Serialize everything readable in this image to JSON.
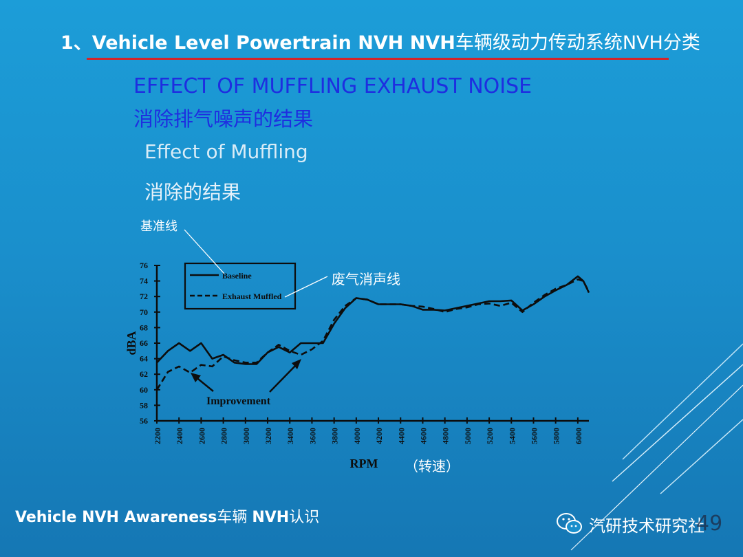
{
  "header": {
    "title_en": "1、Vehicle Level Powertrain NVH  NVH",
    "title_cn": "车辆级动力传动系统NVH分类"
  },
  "subtitle": {
    "line1": "EFFECT OF MUFFLING EXHAUST NOISE",
    "line2": "消除排气噪声的结果",
    "line3": "Effect of Muffling",
    "line4": "消除的结果"
  },
  "annotations": {
    "baseline_cn": "基准线",
    "muffled_cn": "废气消声线",
    "rpm_cn": "（转速）",
    "improvement": "Improvement"
  },
  "chart_data": {
    "type": "line",
    "xlabel": "RPM",
    "ylabel": "dBA",
    "xlim": [
      2200,
      6100
    ],
    "ylim": [
      56,
      76
    ],
    "x_ticks": [
      2200,
      2400,
      2600,
      2800,
      3000,
      3200,
      3400,
      3600,
      3800,
      4000,
      4200,
      4400,
      4600,
      4800,
      5000,
      5200,
      5400,
      5600,
      5800,
      6000
    ],
    "y_ticks": [
      56,
      58,
      60,
      62,
      64,
      66,
      68,
      70,
      72,
      74,
      76
    ],
    "legend": {
      "position": "top-left",
      "boxed": true
    },
    "grid": false,
    "series": [
      {
        "name": "Baseline",
        "style": "solid",
        "x": [
          2200,
          2300,
          2400,
          2500,
          2600,
          2700,
          2800,
          2900,
          3000,
          3100,
          3200,
          3300,
          3400,
          3500,
          3600,
          3700,
          3800,
          3900,
          4000,
          4100,
          4200,
          4300,
          4400,
          4500,
          4600,
          4700,
          4800,
          4900,
          5000,
          5100,
          5200,
          5300,
          5400,
          5500,
          5600,
          5700,
          5800,
          5900,
          6000,
          6050,
          6100
        ],
        "values": [
          63.5,
          65.0,
          66.0,
          65.0,
          66.0,
          64.0,
          64.5,
          63.5,
          63.3,
          63.3,
          64.8,
          65.5,
          64.8,
          66.0,
          66.0,
          66.0,
          68.5,
          70.5,
          71.8,
          71.6,
          71.0,
          71.0,
          71.0,
          70.8,
          70.3,
          70.3,
          70.2,
          70.5,
          70.8,
          71.1,
          71.4,
          71.4,
          71.5,
          70.2,
          71.0,
          72.0,
          72.8,
          73.5,
          74.6,
          74.0,
          72.5
        ]
      },
      {
        "name": "Exhaust Muffled",
        "style": "dashed",
        "x": [
          2200,
          2300,
          2400,
          2500,
          2600,
          2700,
          2800,
          2900,
          3000,
          3100,
          3200,
          3300,
          3400,
          3500,
          3600,
          3700,
          3800,
          3900,
          4000,
          4100,
          4200,
          4300,
          4400,
          4500,
          4600,
          4700,
          4800,
          4900,
          5000,
          5100,
          5200,
          5300,
          5400,
          5500,
          5600,
          5700,
          5800,
          5900,
          6000,
          6050,
          6100
        ],
        "values": [
          60.0,
          62.3,
          63.0,
          62.2,
          63.2,
          63.0,
          64.3,
          63.8,
          63.5,
          63.5,
          64.8,
          65.8,
          65.0,
          64.5,
          65.2,
          66.3,
          69.0,
          70.8,
          71.8,
          71.6,
          71.0,
          71.0,
          71.0,
          70.8,
          70.7,
          70.4,
          70.0,
          70.4,
          70.6,
          71.0,
          71.1,
          70.8,
          71.2,
          70.0,
          71.2,
          72.2,
          73.0,
          73.5,
          74.2,
          74.0,
          72.6
        ]
      }
    ]
  },
  "footer": {
    "text_en": "Vehicle NVH Awareness",
    "text_cn1": "车辆 ",
    "text_en2": "NVH",
    "text_cn2": "认识"
  },
  "watermark": {
    "icon": "wechat-icon",
    "text": "汽研技术研究社"
  },
  "page_number": "49"
}
